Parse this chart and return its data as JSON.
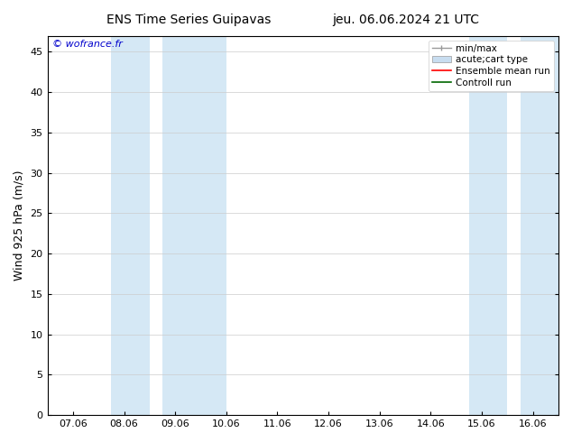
{
  "title_left": "ENS Time Series Guipavas",
  "title_right": "jeu. 06.06.2024 21 UTC",
  "ylabel": "Wind 925 hPa (m/s)",
  "watermark": "© wofrance.fr",
  "ylim": [
    0,
    47
  ],
  "yticks": [
    0,
    5,
    10,
    15,
    20,
    25,
    30,
    35,
    40,
    45
  ],
  "xtick_labels": [
    "07.06",
    "08.06",
    "09.06",
    "10.06",
    "11.06",
    "12.06",
    "13.06",
    "14.06",
    "15.06",
    "16.06"
  ],
  "bg_color": "#ffffff",
  "plot_bg_color": "#ffffff",
  "shade_color": "#d5e8f5",
  "shade_ranges": [
    [
      1.0,
      1.5
    ],
    [
      2.0,
      3.0
    ],
    [
      8.0,
      8.5
    ],
    [
      9.0,
      9.5
    ],
    [
      9.5,
      9.55
    ]
  ],
  "legend_entries": [
    {
      "label": "min/max",
      "color": "#aaaaaa",
      "style": "errorbar"
    },
    {
      "label": "acute;cart type",
      "color": "#c8ddf0",
      "style": "fill"
    },
    {
      "label": "Ensemble mean run",
      "color": "#ff0000",
      "style": "line"
    },
    {
      "label": "Controll run",
      "color": "#006600",
      "style": "line"
    }
  ]
}
